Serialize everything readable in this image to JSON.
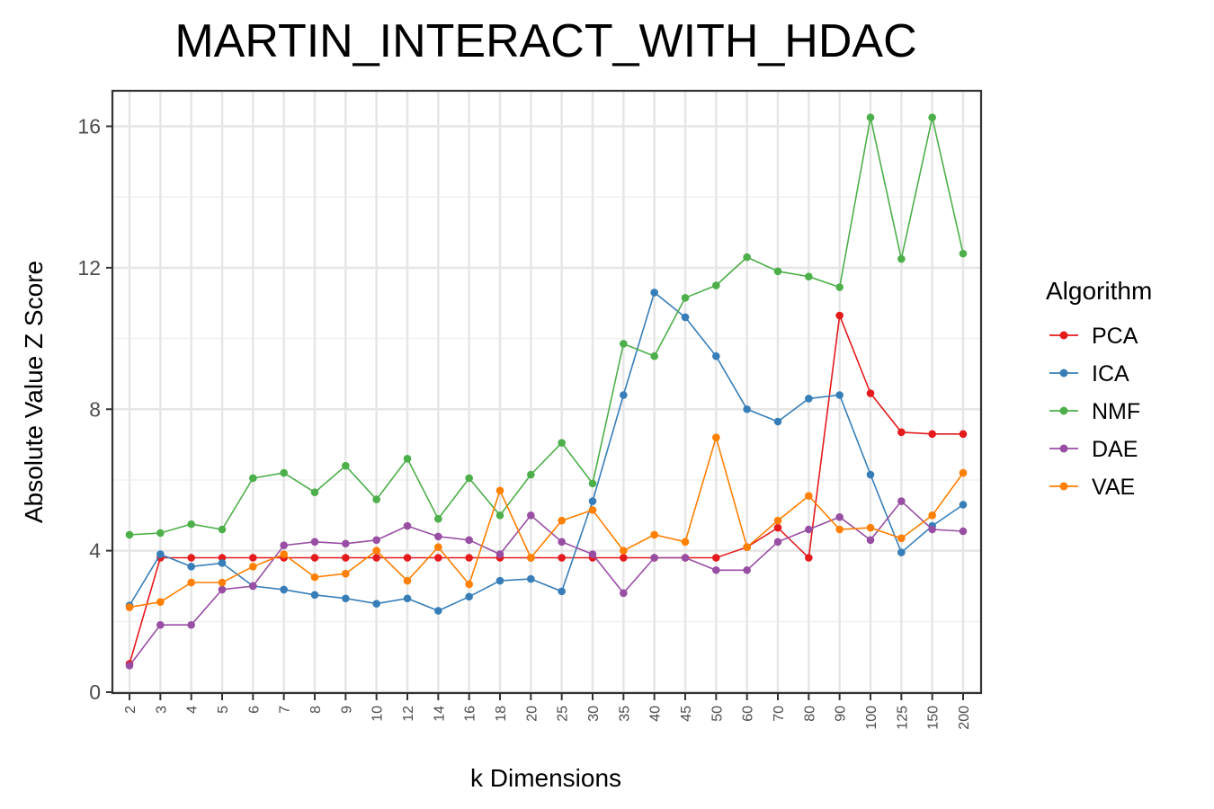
{
  "chart_data": {
    "type": "line",
    "title": "MARTIN_INTERACT_WITH_HDAC",
    "xlabel": "k Dimensions",
    "ylabel": "Absolute Value Z Score",
    "ylim": [
      0,
      17
    ],
    "yticks": [
      0,
      4,
      8,
      12,
      16
    ],
    "categories": [
      "2",
      "3",
      "4",
      "5",
      "6",
      "7",
      "8",
      "9",
      "10",
      "12",
      "14",
      "16",
      "18",
      "20",
      "25",
      "30",
      "35",
      "40",
      "45",
      "50",
      "60",
      "70",
      "80",
      "90",
      "100",
      "125",
      "150",
      "200"
    ],
    "legend": {
      "title": "Algorithm",
      "position": "right"
    },
    "grid": true,
    "series": [
      {
        "name": "PCA",
        "color": "#e41a1c",
        "values": [
          0.8,
          3.8,
          3.8,
          3.8,
          3.8,
          3.8,
          3.8,
          3.8,
          3.8,
          3.8,
          3.8,
          3.8,
          3.8,
          3.8,
          3.8,
          3.8,
          3.8,
          3.8,
          3.8,
          3.8,
          4.1,
          4.65,
          3.8,
          10.65,
          8.45,
          7.35,
          7.3,
          7.3
        ]
      },
      {
        "name": "ICA",
        "color": "#377eb8",
        "values": [
          2.45,
          3.9,
          3.55,
          3.65,
          3.0,
          2.9,
          2.75,
          2.65,
          2.5,
          2.65,
          2.3,
          2.7,
          3.15,
          3.2,
          2.85,
          5.4,
          8.4,
          11.3,
          10.6,
          9.5,
          8.0,
          7.65,
          8.3,
          8.4,
          6.15,
          3.95,
          4.7,
          5.3
        ]
      },
      {
        "name": "NMF",
        "color": "#4daf4a",
        "values": [
          4.45,
          4.5,
          4.75,
          4.6,
          6.05,
          6.2,
          5.65,
          6.4,
          5.45,
          6.6,
          4.9,
          6.05,
          5.0,
          6.15,
          7.05,
          5.9,
          9.85,
          9.5,
          11.15,
          11.5,
          12.3,
          11.9,
          11.75,
          11.45,
          16.25,
          12.25,
          16.25,
          12.4
        ]
      },
      {
        "name": "DAE",
        "color": "#984ea3",
        "values": [
          0.75,
          1.9,
          1.9,
          2.9,
          3.0,
          4.15,
          4.25,
          4.2,
          4.3,
          4.7,
          4.4,
          4.3,
          3.9,
          5.0,
          4.25,
          3.9,
          2.8,
          3.8,
          3.8,
          3.45,
          3.45,
          4.25,
          4.6,
          4.95,
          4.3,
          5.4,
          4.6,
          4.55
        ]
      },
      {
        "name": "VAE",
        "color": "#ff7f00",
        "values": [
          2.4,
          2.55,
          3.1,
          3.1,
          3.55,
          3.9,
          3.25,
          3.35,
          4.0,
          3.15,
          4.1,
          3.05,
          5.7,
          3.8,
          4.85,
          5.15,
          4.0,
          4.45,
          4.25,
          7.2,
          4.1,
          4.85,
          5.55,
          4.6,
          4.65,
          4.35,
          5.0,
          6.2
        ]
      }
    ]
  }
}
